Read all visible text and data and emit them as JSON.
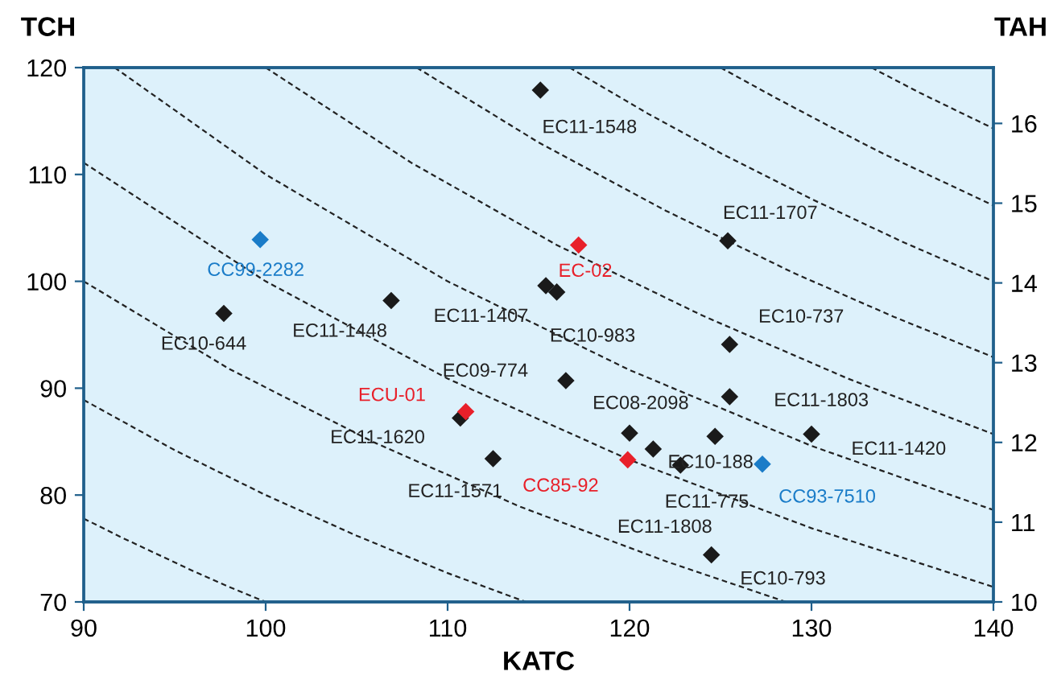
{
  "chart_data": {
    "type": "scatter",
    "xlabel": "KATC",
    "ylabel": "TCH",
    "y2label": "TAH",
    "xlim": [
      90,
      140
    ],
    "xticks": [
      90,
      100,
      110,
      120,
      130,
      140
    ],
    "ylim": [
      70,
      120
    ],
    "yticks": [
      70,
      80,
      90,
      100,
      110,
      120
    ],
    "y2lim": [
      10,
      16.7
    ],
    "y2ticks": [
      10,
      11,
      12,
      13,
      14,
      15,
      16
    ],
    "grid": false,
    "series": [
      {
        "type": "line",
        "color": "#222222",
        "line_style": "dashed",
        "marker": "none",
        "x": [
          90,
          92,
          94,
          96,
          98,
          100
        ],
        "values": [
          77.8,
          76.1,
          74.5,
          72.9,
          71.4,
          70.0
        ]
      },
      {
        "type": "line",
        "color": "#222222",
        "line_style": "dashed",
        "marker": "none",
        "x": [
          90,
          95,
          100,
          105,
          110,
          114.3
        ],
        "values": [
          88.9,
          84.2,
          80.0,
          76.2,
          72.7,
          70.0
        ]
      },
      {
        "type": "line",
        "color": "#222222",
        "line_style": "dashed",
        "marker": "none",
        "x": [
          90,
          98,
          106,
          114,
          122,
          128.6
        ],
        "values": [
          100.0,
          91.8,
          84.9,
          78.9,
          73.8,
          70.0
        ]
      },
      {
        "type": "line",
        "color": "#222222",
        "line_style": "dashed",
        "marker": "none",
        "x": [
          90,
          100,
          110,
          120,
          130,
          140
        ],
        "values": [
          111.1,
          100.0,
          90.9,
          83.3,
          76.9,
          71.4
        ]
      },
      {
        "type": "line",
        "color": "#222222",
        "line_style": "dashed",
        "marker": "none",
        "x": [
          91.7,
          100,
          110,
          120,
          130,
          140
        ],
        "values": [
          120.0,
          110.0,
          100.0,
          91.7,
          84.6,
          78.6
        ]
      },
      {
        "type": "line",
        "color": "#222222",
        "line_style": "dashed",
        "marker": "none",
        "x": [
          100,
          108,
          116,
          124,
          132,
          140
        ],
        "values": [
          120.0,
          111.1,
          103.4,
          96.8,
          90.9,
          85.7
        ]
      },
      {
        "type": "line",
        "color": "#222222",
        "line_style": "dashed",
        "marker": "none",
        "x": [
          108.3,
          115,
          122,
          129,
          134.5,
          140
        ],
        "values": [
          120.0,
          113.0,
          106.6,
          100.8,
          96.7,
          92.9
        ]
      },
      {
        "type": "line",
        "color": "#222222",
        "line_style": "dashed",
        "marker": "none",
        "x": [
          116.7,
          121,
          125,
          130,
          135,
          140
        ],
        "values": [
          120.0,
          115.7,
          112.0,
          107.7,
          103.7,
          100.0
        ]
      },
      {
        "type": "line",
        "color": "#222222",
        "line_style": "dashed",
        "marker": "none",
        "x": [
          125,
          128,
          131,
          134,
          137,
          140
        ],
        "values": [
          120.0,
          117.2,
          114.5,
          111.9,
          109.5,
          107.1
        ]
      },
      {
        "type": "line",
        "color": "#222222",
        "line_style": "dashed",
        "marker": "none",
        "x": [
          133.3,
          136,
          140
        ],
        "values": [
          120.0,
          117.6,
          114.3
        ]
      },
      {
        "type": "scatter",
        "marker": "diamond",
        "x": [
          99.7,
          97.7,
          106.9,
          115.1,
          117.2,
          115.4,
          116.0,
          125.4,
          125.5,
          116.5,
          125.5,
          110.7,
          111.0,
          120.0,
          112.5,
          119.9,
          121.3,
          122.8,
          124.7,
          130.0,
          127.3,
          124.5
        ],
        "values": [
          103.9,
          97.0,
          98.2,
          117.9,
          103.4,
          99.6,
          99.0,
          103.8,
          94.1,
          90.7,
          89.2,
          87.2,
          87.8,
          85.8,
          83.4,
          83.3,
          84.3,
          82.8,
          85.5,
          85.7,
          82.9,
          74.4
        ],
        "colors": [
          "#1a7cc8",
          "#1a1a1a",
          "#1a1a1a",
          "#1a1a1a",
          "#e8202a",
          "#1a1a1a",
          "#1a1a1a",
          "#1a1a1a",
          "#1a1a1a",
          "#1a1a1a",
          "#1a1a1a",
          "#1a1a1a",
          "#e8202a",
          "#1a1a1a",
          "#1a1a1a",
          "#e8202a",
          "#1a1a1a",
          "#1a1a1a",
          "#1a1a1a",
          "#1a1a1a",
          "#1a7cc8",
          "#1a1a1a"
        ]
      }
    ],
    "annotations": [
      {
        "text": "CC99-2282",
        "x": 99.7,
        "y": 103.9
      },
      {
        "text": "EC10-644",
        "x": 97.7,
        "y": 97.0
      },
      {
        "text": "EC11-1448",
        "x": 106.9,
        "y": 98.2
      },
      {
        "text": "EC11-1548",
        "x": 115.1,
        "y": 117.9
      },
      {
        "text": "EC-02",
        "x": 117.2,
        "y": 103.4
      },
      {
        "text": "EC11-1407",
        "x": 115.4,
        "y": 99.6
      },
      {
        "text": "EC10-983",
        "x": 116.0,
        "y": 99.0
      },
      {
        "text": "EC11-1707",
        "x": 125.4,
        "y": 103.8
      },
      {
        "text": "EC10-737",
        "x": 125.5,
        "y": 94.1
      },
      {
        "text": "EC09-774",
        "x": 116.5,
        "y": 90.7
      },
      {
        "text": "EC11-1803",
        "x": 125.5,
        "y": 89.2
      },
      {
        "text": "ECU-01",
        "x": 111.0,
        "y": 87.8
      },
      {
        "text": "EC11-1620",
        "x": 110.7,
        "y": 87.2
      },
      {
        "text": "EC08-2098",
        "x": 120.0,
        "y": 85.8
      },
      {
        "text": "EC11-1571",
        "x": 112.5,
        "y": 83.4
      },
      {
        "text": "CC85-92",
        "x": 119.9,
        "y": 83.3
      },
      {
        "text": "EC11-775",
        "x": 121.3,
        "y": 84.3
      },
      {
        "text": "EC11-1808",
        "x": 122.8,
        "y": 82.8
      },
      {
        "text": "EC10-188",
        "x": 124.7,
        "y": 85.5
      },
      {
        "text": "EC11-1420",
        "x": 130.0,
        "y": 85.7
      },
      {
        "text": "CC93-7510",
        "x": 127.3,
        "y": 82.9
      },
      {
        "text": "EC10-793",
        "x": 124.5,
        "y": 74.4
      }
    ]
  }
}
